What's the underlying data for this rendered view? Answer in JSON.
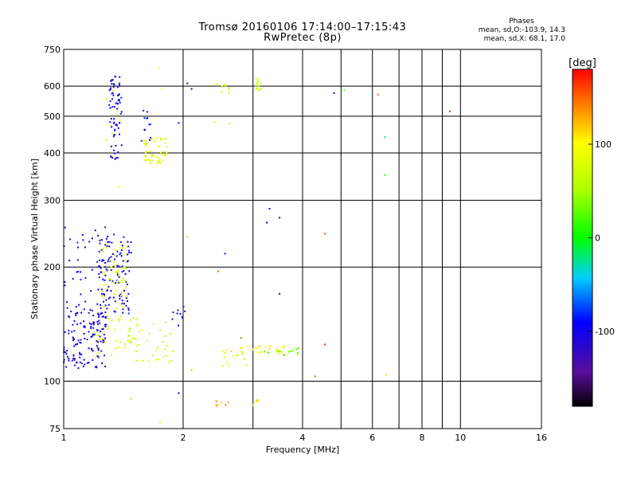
{
  "header": {
    "title": "Tromsø 20160106 17:14:00–17:15:43",
    "subtitle": "RwPretec (8p)",
    "stats_title": "Phases",
    "stats_o": "mean, sd,O:-103.9, 14.3",
    "stats_x": "mean, sd,X:  68.1, 17.0"
  },
  "chart_data": {
    "type": "scatter",
    "title": "Tromsø 20160106 17:14:00–17:15:43",
    "subtitle": "RwPretec (8p)",
    "xlabel": "Frequency [MHz]",
    "ylabel": "Stationary phase Virtual Height [km]",
    "x_scale": "log",
    "y_scale": "log",
    "xlim": [
      1,
      16
    ],
    "ylim": [
      75,
      750
    ],
    "x_ticks": [
      1,
      2,
      4,
      6,
      8,
      10,
      16
    ],
    "x_tick_labels": [
      "1",
      "2",
      "4",
      "6",
      "8",
      "10",
      "16"
    ],
    "y_ticks": [
      75,
      100,
      200,
      300,
      400,
      500,
      600,
      750
    ],
    "y_tick_labels": [
      "75",
      "100",
      "200",
      "300",
      "400",
      "500",
      "600",
      "750"
    ],
    "grid": true,
    "colorbar": {
      "label": "[deg]",
      "range": [
        -180,
        180
      ],
      "ticks": [
        100,
        0,
        -100
      ],
      "tick_labels": [
        "100",
        "0",
        "-100"
      ]
    },
    "clusters": [
      {
        "f": [
          1.0,
          1.28
        ],
        "h": [
          108,
          160
        ],
        "phase": -105,
        "n": 140
      },
      {
        "f": [
          1.0,
          1.3
        ],
        "h": [
          150,
          260
        ],
        "phase": -100,
        "n": 40
      },
      {
        "f": [
          1.22,
          1.48
        ],
        "h": [
          150,
          245
        ],
        "phase": -100,
        "n": 110
      },
      {
        "f": [
          1.24,
          1.45
        ],
        "h": [
          155,
          230
        ],
        "phase": 80,
        "n": 55
      },
      {
        "f": [
          1.2,
          1.55
        ],
        "h": [
          115,
          150
        ],
        "phase": 78,
        "n": 40
      },
      {
        "f": [
          1.45,
          1.9
        ],
        "h": [
          112,
          145
        ],
        "phase": 72,
        "n": 35
      },
      {
        "f": [
          1.3,
          1.4
        ],
        "h": [
          385,
          640
        ],
        "phase": -100,
        "n": 70
      },
      {
        "f": [
          1.28,
          1.42
        ],
        "h": [
          430,
          600
        ],
        "phase": 75,
        "n": 8
      },
      {
        "f": [
          1.58,
          1.82
        ],
        "h": [
          375,
          440
        ],
        "phase": 85,
        "n": 55
      },
      {
        "f": [
          1.56,
          1.66
        ],
        "h": [
          430,
          520
        ],
        "phase": -95,
        "n": 12
      },
      {
        "f": [
          2.4,
          2.62
        ],
        "h": [
          555,
          620
        ],
        "phase": 78,
        "n": 8
      },
      {
        "f": [
          3.05,
          3.15
        ],
        "h": [
          585,
          630
        ],
        "phase": 70,
        "n": 14
      },
      {
        "f": [
          2.5,
          3.7
        ],
        "h": [
          118,
          124
        ],
        "phase": 100,
        "n": 30
      },
      {
        "f": [
          3.2,
          4.0
        ],
        "h": [
          117,
          123
        ],
        "phase": 40,
        "n": 18
      },
      {
        "f": [
          2.5,
          2.9
        ],
        "h": [
          108,
          118
        ],
        "phase": 80,
        "n": 10
      },
      {
        "f": [
          2.4,
          2.7
        ],
        "h": [
          86,
          89
        ],
        "phase": 130,
        "n": 6
      },
      {
        "f": [
          3.0,
          3.1
        ],
        "h": [
          86,
          90
        ],
        "phase": 100,
        "n": 5
      },
      {
        "f": [
          1.8,
          2.05
        ],
        "h": [
          140,
          160
        ],
        "phase": -100,
        "n": 10
      }
    ],
    "points": [
      {
        "f": 9.4,
        "h": 515,
        "phase": 170
      },
      {
        "f": 6.2,
        "h": 570,
        "phase": 150
      },
      {
        "f": 6.45,
        "h": 440,
        "phase": -20
      },
      {
        "f": 6.45,
        "h": 350,
        "phase": 10
      },
      {
        "f": 5.1,
        "h": 585,
        "phase": 30
      },
      {
        "f": 4.8,
        "h": 575,
        "phase": -100
      },
      {
        "f": 4.55,
        "h": 245,
        "phase": 150
      },
      {
        "f": 4.55,
        "h": 125,
        "phase": 170
      },
      {
        "f": 4.3,
        "h": 103,
        "phase": 150
      },
      {
        "f": 6.5,
        "h": 104,
        "phase": 110
      },
      {
        "f": 3.5,
        "h": 270,
        "phase": -100
      },
      {
        "f": 3.3,
        "h": 285,
        "phase": -100
      },
      {
        "f": 3.25,
        "h": 262,
        "phase": -100
      },
      {
        "f": 3.5,
        "h": 170,
        "phase": -100
      },
      {
        "f": 2.55,
        "h": 217,
        "phase": -100
      },
      {
        "f": 2.45,
        "h": 195,
        "phase": 150
      },
      {
        "f": 2.05,
        "h": 240,
        "phase": 60
      },
      {
        "f": 2.1,
        "h": 590,
        "phase": -100
      },
      {
        "f": 2.05,
        "h": 610,
        "phase": -100
      },
      {
        "f": 1.95,
        "h": 480,
        "phase": -100
      },
      {
        "f": 1.45,
        "h": 100,
        "phase": 170
      },
      {
        "f": 1.48,
        "h": 90,
        "phase": 120
      },
      {
        "f": 1.75,
        "h": 78,
        "phase": 110
      },
      {
        "f": 1.95,
        "h": 93,
        "phase": -110
      },
      {
        "f": 1.74,
        "h": 670,
        "phase": 100
      },
      {
        "f": 1.77,
        "h": 590,
        "phase": 100
      },
      {
        "f": 1.38,
        "h": 325,
        "phase": 100
      },
      {
        "f": 2.4,
        "h": 482,
        "phase": 70
      },
      {
        "f": 2.62,
        "h": 478,
        "phase": 110
      },
      {
        "f": 2.8,
        "h": 130,
        "phase": 150
      },
      {
        "f": 2.1,
        "h": 107,
        "phase": 120
      }
    ]
  }
}
